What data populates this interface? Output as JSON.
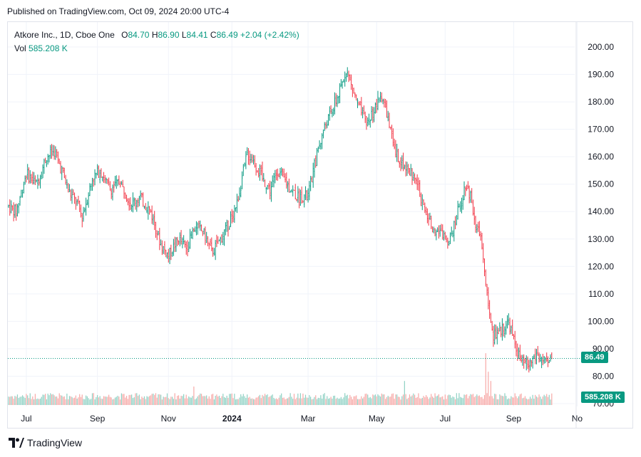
{
  "header": {
    "published": "Published on TradingView.com, Oct 09, 2024 20:00 UTC-4"
  },
  "legend": {
    "symbol": "Atkore Inc., 1D, Cboe One",
    "o_label": "O",
    "o": "84.70",
    "h_label": "H",
    "h": "86.90",
    "l_label": "L",
    "l": "84.41",
    "c_label": "C",
    "c": "86.49",
    "change": "+2.04 (+2.42%)",
    "vol_label": "Vol",
    "vol": "585.208 K"
  },
  "footer": {
    "brand": "TradingView"
  },
  "colors": {
    "up": "#089981",
    "down": "#f23645",
    "up_vol": "#8fd1c4",
    "down_vol": "#f7a9a7",
    "grid": "#f0f3fa"
  },
  "chart_data": {
    "type": "candlestick",
    "y_ticks": [
      "200.00",
      "190.00",
      "180.00",
      "170.00",
      "160.00",
      "150.00",
      "140.00",
      "130.00",
      "120.00",
      "110.00",
      "100.00",
      "90.00",
      "80.00",
      "70.00"
    ],
    "ylim": [
      70,
      200
    ],
    "x_ticks": [
      "Jul",
      "Sep",
      "Nov",
      "2024",
      "Mar",
      "May",
      "Jul",
      "Sep",
      "No"
    ],
    "last_price": "86.49",
    "last_volume": "585.208 K",
    "anchors": [
      [
        0,
        142
      ],
      [
        6,
        140
      ],
      [
        14,
        154
      ],
      [
        22,
        150
      ],
      [
        30,
        160
      ],
      [
        36,
        162
      ],
      [
        42,
        155
      ],
      [
        48,
        147
      ],
      [
        54,
        143
      ],
      [
        58,
        138
      ],
      [
        66,
        152
      ],
      [
        72,
        155
      ],
      [
        80,
        148
      ],
      [
        88,
        151
      ],
      [
        96,
        143
      ],
      [
        104,
        145
      ],
      [
        112,
        140
      ],
      [
        120,
        128
      ],
      [
        126,
        124
      ],
      [
        134,
        130
      ],
      [
        140,
        127
      ],
      [
        148,
        135
      ],
      [
        154,
        132
      ],
      [
        160,
        125
      ],
      [
        166,
        129
      ],
      [
        172,
        134
      ],
      [
        180,
        143
      ],
      [
        188,
        161
      ],
      [
        194,
        158
      ],
      [
        200,
        152
      ],
      [
        206,
        148
      ],
      [
        212,
        155
      ],
      [
        220,
        150
      ],
      [
        228,
        145
      ],
      [
        236,
        146
      ],
      [
        244,
        163
      ],
      [
        250,
        172
      ],
      [
        256,
        178
      ],
      [
        262,
        185
      ],
      [
        266,
        192
      ],
      [
        270,
        186
      ],
      [
        276,
        178
      ],
      [
        282,
        172
      ],
      [
        288,
        177
      ],
      [
        294,
        183
      ],
      [
        298,
        176
      ],
      [
        304,
        162
      ],
      [
        310,
        158
      ],
      [
        316,
        155
      ],
      [
        322,
        150
      ],
      [
        328,
        140
      ],
      [
        334,
        135
      ],
      [
        340,
        132
      ],
      [
        346,
        130
      ],
      [
        350,
        134
      ],
      [
        356,
        143
      ],
      [
        360,
        150
      ],
      [
        364,
        146
      ],
      [
        368,
        136
      ],
      [
        372,
        130
      ],
      [
        374,
        121
      ],
      [
        376,
        115
      ],
      [
        378,
        104
      ],
      [
        382,
        95
      ],
      [
        388,
        97
      ],
      [
        394,
        100
      ],
      [
        398,
        93
      ],
      [
        404,
        85
      ],
      [
        410,
        84
      ],
      [
        416,
        88
      ],
      [
        424,
        84
      ],
      [
        428,
        86.5
      ]
    ],
    "volume_spikes": [
      [
        146,
        1.0
      ],
      [
        174,
        0.6
      ],
      [
        312,
        1.3
      ],
      [
        376,
        2.8
      ],
      [
        378,
        1.8
      ],
      [
        380,
        1.3
      ]
    ]
  }
}
